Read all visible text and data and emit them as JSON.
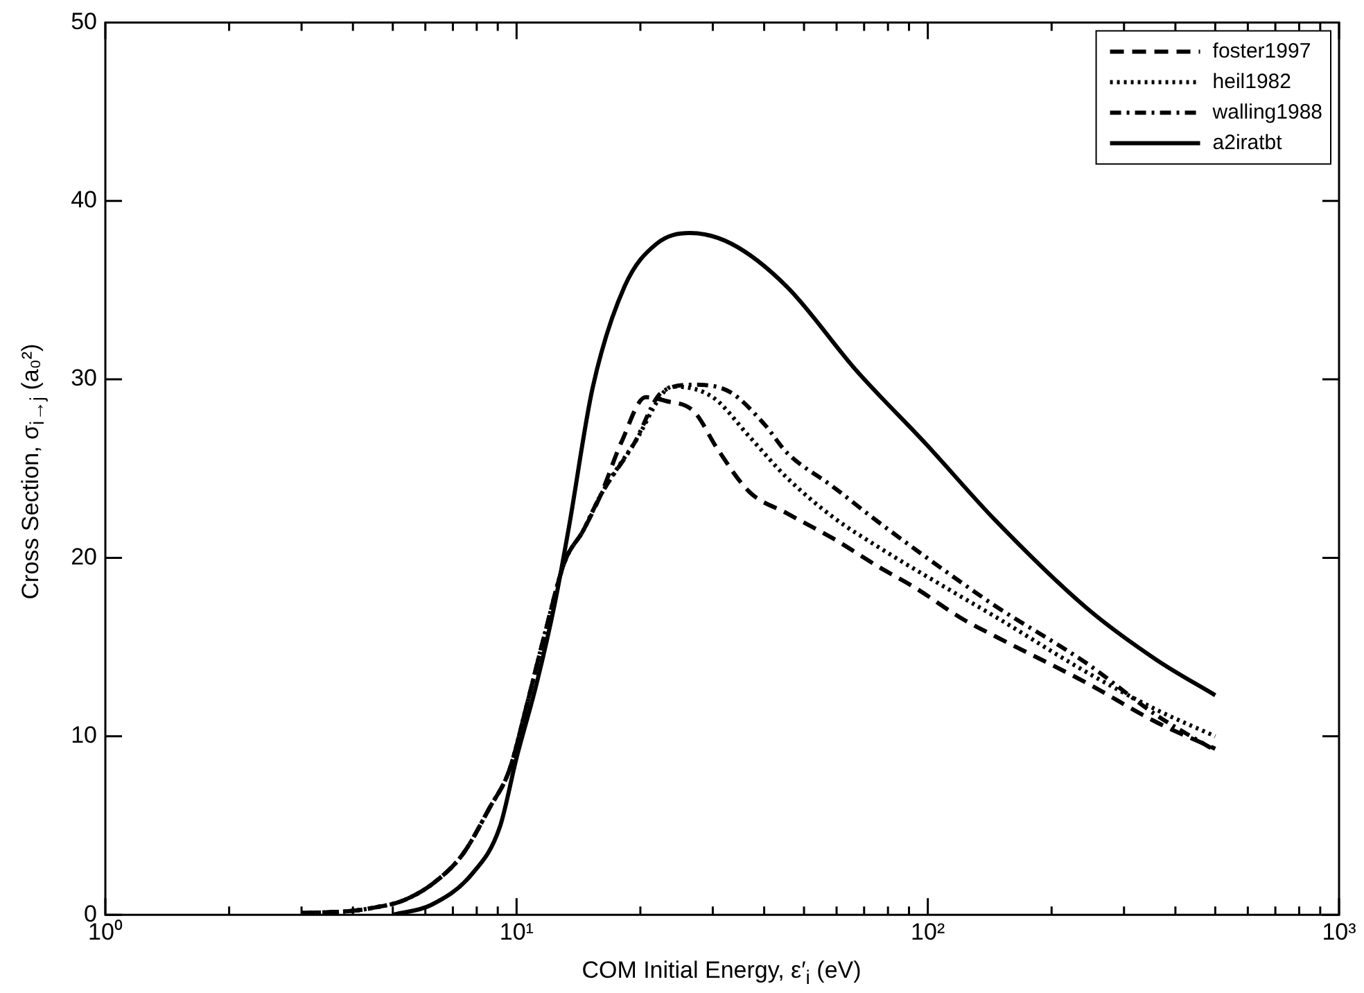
{
  "chart_data": {
    "type": "line",
    "xlabel": "COM Initial Energy, ε′$_{i}$ (eV)",
    "ylabel": "Cross Section, σ$_{i→j}$ (a₀²)",
    "log": "x",
    "grid": false,
    "legend": "top right",
    "marker": "none",
    "xlim": [
      1,
      1000
    ],
    "xticks": [
      {
        "value": 1,
        "label": "10⁰"
      },
      {
        "value": 10,
        "label": "10¹"
      },
      {
        "value": 100,
        "label": "10²"
      },
      {
        "value": 1000,
        "label": "10³"
      }
    ],
    "ylim": [
      0,
      50
    ],
    "yticks": [
      0,
      10,
      20,
      30,
      40,
      50
    ],
    "series": [
      {
        "name": "foster1997",
        "color": "#000000",
        "line_style": "dashed",
        "x": [
          3,
          3.9,
          4.5,
          5.3,
          6.3,
          7.4,
          8.6,
          9.6,
          10.6,
          11.7,
          13.1,
          14.5,
          16,
          18,
          20.6,
          23,
          27,
          30.8,
          36.8,
          45.4,
          58.7,
          75.9,
          93.5,
          121,
          146,
          243,
          359,
          500
        ],
        "values": [
          0.1,
          0.2,
          0.4,
          0.8,
          1.8,
          3.4,
          6,
          8.1,
          11.8,
          15.7,
          19.8,
          21.5,
          23.5,
          26.5,
          29,
          28.8,
          28.2,
          26.1,
          23.7,
          22.5,
          21.1,
          19.5,
          18.3,
          16.6,
          15.6,
          13,
          10.8,
          9.3
        ]
      },
      {
        "name": "heil1982",
        "color": "#000000",
        "line_style": "dotted",
        "x": [
          3,
          3.9,
          4.5,
          5.3,
          6.3,
          7.4,
          8.6,
          9.6,
          10.6,
          11.7,
          13.1,
          14.5,
          16,
          19.3,
          24,
          30,
          36.8,
          45.4,
          58.7,
          75.9,
          121,
          146,
          243,
          359,
          500
        ],
        "values": [
          0.1,
          0.2,
          0.4,
          0.8,
          1.8,
          3.4,
          6,
          8.1,
          11.8,
          15.7,
          19.8,
          21.5,
          23.5,
          26.4,
          29.6,
          29,
          26.8,
          24.5,
          22.3,
          20.6,
          17.8,
          16.7,
          13.6,
          11.5,
          10
        ]
      },
      {
        "name": "walling1988",
        "color": "#000000",
        "line_style": "dashdot",
        "x": [
          3,
          3.9,
          4.5,
          5.3,
          6.3,
          7.4,
          8.6,
          9.6,
          10.6,
          11.7,
          13.1,
          14.5,
          16,
          19.3,
          22.6,
          27,
          33,
          40,
          45.4,
          58.7,
          75.9,
          121,
          146,
          243,
          359,
          500
        ],
        "values": [
          0.1,
          0.2,
          0.4,
          0.8,
          1.8,
          3.4,
          6,
          8.1,
          11.8,
          15.7,
          19.8,
          21.5,
          23.5,
          26.4,
          29.3,
          29.7,
          29.3,
          27.5,
          25.9,
          24,
          22,
          18.6,
          17.3,
          14.1,
          11.2,
          9.2
        ]
      },
      {
        "name": "a2iratbt",
        "color": "#000000",
        "line_style": "solid",
        "x": [
          5,
          6.2,
          7.8,
          9.1,
          10,
          11.2,
          12.4,
          13.4,
          15.3,
          18.3,
          21.9,
          26.4,
          33.3,
          45.4,
          67,
          98.8,
          146,
          243,
          359,
          500
        ],
        "values": [
          0,
          0.55,
          2.3,
          4.9,
          8.8,
          13,
          17.5,
          21.7,
          29.5,
          35.2,
          37.6,
          38.2,
          37.6,
          35.2,
          30.5,
          26.4,
          22.1,
          17.2,
          14.3,
          12.3
        ]
      }
    ]
  }
}
